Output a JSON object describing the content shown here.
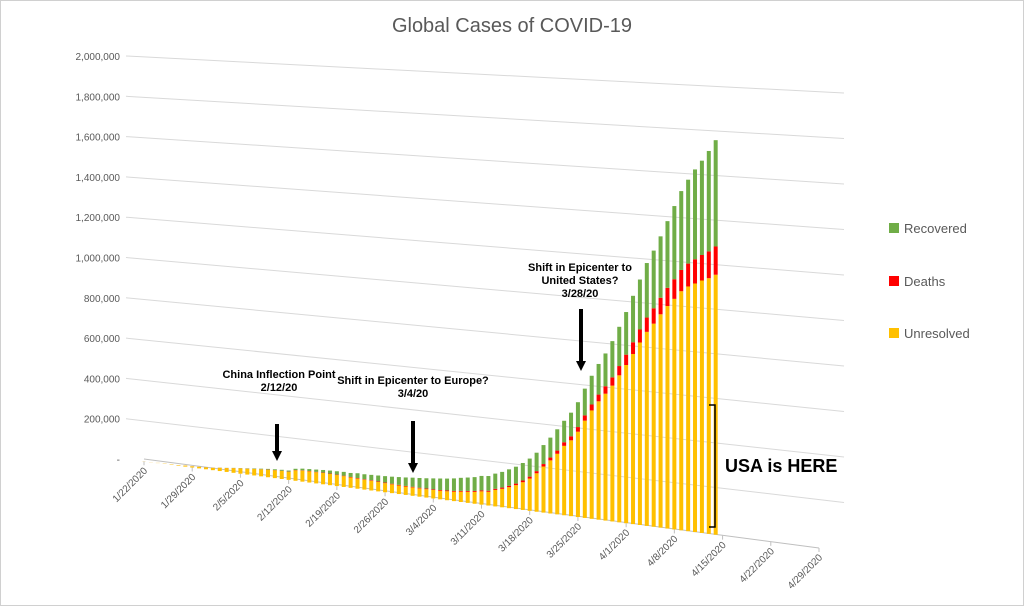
{
  "chart_data": {
    "type": "bar",
    "stacked": true,
    "title": "Global Cases of COVID-19",
    "xlabel": "",
    "ylabel": "",
    "ylim": [
      0,
      2000000
    ],
    "y_ticks": [
      "-",
      "200,000",
      "400,000",
      "600,000",
      "800,000",
      "1,000,000",
      "1,200,000",
      "1,400,000",
      "1,600,000",
      "1,800,000",
      "2,000,000"
    ],
    "x_ticks": [
      "1/22/2020",
      "1/29/2020",
      "2/5/2020",
      "2/12/2020",
      "2/19/2020",
      "2/26/2020",
      "3/4/2020",
      "3/11/2020",
      "3/18/2020",
      "3/25/2020",
      "4/1/2020",
      "4/8/2020",
      "4/15/2020",
      "4/22/2020",
      "4/29/2020"
    ],
    "start_date": "1/22/2020",
    "end_date": "4/29/2020",
    "series": [
      {
        "name": "Unresolved",
        "color": "#FFC000"
      },
      {
        "name": "Deaths",
        "color": "#FF0000"
      },
      {
        "name": "Recovered",
        "color": "#70AD47"
      }
    ],
    "days": [
      {
        "date": "1/22/2020",
        "unresolved": 500,
        "deaths": 17,
        "recovered": 28
      },
      {
        "date": "1/23/2020",
        "unresolved": 600,
        "deaths": 18,
        "recovered": 30
      },
      {
        "date": "1/24/2020",
        "unresolved": 880,
        "deaths": 26,
        "recovered": 36
      },
      {
        "date": "1/25/2020",
        "unresolved": 1300,
        "deaths": 42,
        "recovered": 39
      },
      {
        "date": "1/26/2020",
        "unresolved": 2000,
        "deaths": 56,
        "recovered": 52
      },
      {
        "date": "1/27/2020",
        "unresolved": 2700,
        "deaths": 82,
        "recovered": 61
      },
      {
        "date": "1/28/2020",
        "unresolved": 5300,
        "deaths": 131,
        "recovered": 107
      },
      {
        "date": "1/29/2020",
        "unresolved": 5900,
        "deaths": 133,
        "recovered": 126
      },
      {
        "date": "1/30/2020",
        "unresolved": 7800,
        "deaths": 171,
        "recovered": 143
      },
      {
        "date": "1/31/2020",
        "unresolved": 9400,
        "deaths": 213,
        "recovered": 222
      },
      {
        "date": "2/1/2020",
        "unresolved": 11300,
        "deaths": 259,
        "recovered": 284
      },
      {
        "date": "2/2/2020",
        "unresolved": 15900,
        "deaths": 362,
        "recovered": 472
      },
      {
        "date": "2/3/2020",
        "unresolved": 18700,
        "deaths": 426,
        "recovered": 623
      },
      {
        "date": "2/4/2020",
        "unresolved": 22600,
        "deaths": 492,
        "recovered": 852
      },
      {
        "date": "2/5/2020",
        "unresolved": 25600,
        "deaths": 564,
        "recovered": 1124
      },
      {
        "date": "2/6/2020",
        "unresolved": 28300,
        "deaths": 634,
        "recovered": 1487
      },
      {
        "date": "2/7/2020",
        "unresolved": 31500,
        "deaths": 719,
        "recovered": 2011
      },
      {
        "date": "2/8/2020",
        "unresolved": 33700,
        "deaths": 806,
        "recovered": 2616
      },
      {
        "date": "2/9/2020",
        "unresolved": 36200,
        "deaths": 906,
        "recovered": 3244
      },
      {
        "date": "2/10/2020",
        "unresolved": 37700,
        "deaths": 1013,
        "recovered": 3946
      },
      {
        "date": "2/11/2020",
        "unresolved": 38600,
        "deaths": 1113,
        "recovered": 4683
      },
      {
        "date": "2/12/2020",
        "unresolved": 38900,
        "deaths": 1118,
        "recovered": 5150
      },
      {
        "date": "2/13/2020",
        "unresolved": 50000,
        "deaths": 1371,
        "recovered": 6295
      },
      {
        "date": "2/14/2020",
        "unresolved": 52900,
        "deaths": 1523,
        "recovered": 8058
      },
      {
        "date": "2/15/2020",
        "unresolved": 53500,
        "deaths": 1666,
        "recovered": 9395
      },
      {
        "date": "2/16/2020",
        "unresolved": 53800,
        "deaths": 1770,
        "recovered": 10865
      },
      {
        "date": "2/17/2020",
        "unresolved": 54100,
        "deaths": 1868,
        "recovered": 12583
      },
      {
        "date": "2/18/2020",
        "unresolved": 53600,
        "deaths": 2007,
        "recovered": 14352
      },
      {
        "date": "2/19/2020",
        "unresolved": 52500,
        "deaths": 2122,
        "recovered": 16121
      },
      {
        "date": "2/20/2020",
        "unresolved": 51500,
        "deaths": 2247,
        "recovered": 18177
      },
      {
        "date": "2/21/2020",
        "unresolved": 49700,
        "deaths": 2251,
        "recovered": 18890
      },
      {
        "date": "2/22/2020",
        "unresolved": 48300,
        "deaths": 2458,
        "recovered": 22886
      },
      {
        "date": "2/23/2020",
        "unresolved": 47100,
        "deaths": 2469,
        "recovered": 23394
      },
      {
        "date": "2/24/2020",
        "unresolved": 46300,
        "deaths": 2629,
        "recovered": 25227
      },
      {
        "date": "2/25/2020",
        "unresolved": 44600,
        "deaths": 2708,
        "recovered": 27905
      },
      {
        "date": "2/26/2020",
        "unresolved": 43200,
        "deaths": 2770,
        "recovered": 30384
      },
      {
        "date": "2/27/2020",
        "unresolved": 41800,
        "deaths": 2814,
        "recovered": 33277
      },
      {
        "date": "2/28/2020",
        "unresolved": 40500,
        "deaths": 2872,
        "recovered": 36711
      },
      {
        "date": "2/29/2020",
        "unresolved": 39600,
        "deaths": 2941,
        "recovered": 39782
      },
      {
        "date": "3/1/2020",
        "unresolved": 39700,
        "deaths": 2996,
        "recovered": 42716
      },
      {
        "date": "3/2/2020",
        "unresolved": 39200,
        "deaths": 3085,
        "recovered": 45602
      },
      {
        "date": "3/3/2020",
        "unresolved": 39300,
        "deaths": 3160,
        "recovered": 48228
      },
      {
        "date": "3/4/2020",
        "unresolved": 39700,
        "deaths": 3254,
        "recovered": 51170
      },
      {
        "date": "3/5/2020",
        "unresolved": 40500,
        "deaths": 3348,
        "recovered": 53796
      },
      {
        "date": "3/6/2020",
        "unresolved": 42000,
        "deaths": 3460,
        "recovered": 55865
      },
      {
        "date": "3/7/2020",
        "unresolved": 44200,
        "deaths": 3558,
        "recovered": 58358
      },
      {
        "date": "3/8/2020",
        "unresolved": 48300,
        "deaths": 3802,
        "recovered": 60694
      },
      {
        "date": "3/9/2020",
        "unresolved": 51700,
        "deaths": 3988,
        "recovered": 62494
      },
      {
        "date": "3/10/2020",
        "unresolved": 55400,
        "deaths": 4262,
        "recovered": 64404
      },
      {
        "date": "3/11/2020",
        "unresolved": 61900,
        "deaths": 4615,
        "recovered": 67003
      },
      {
        "date": "3/12/2020",
        "unresolved": 64000,
        "deaths": 4720,
        "recovered": 68324
      },
      {
        "date": "3/13/2020",
        "unresolved": 76500,
        "deaths": 5404,
        "recovered": 70251
      },
      {
        "date": "3/14/2020",
        "unresolved": 85600,
        "deaths": 5819,
        "recovered": 72624
      },
      {
        "date": "3/15/2020",
        "unresolved": 97300,
        "deaths": 6440,
        "recovered": 76034
      },
      {
        "date": "3/16/2020",
        "unresolved": 110600,
        "deaths": 7126,
        "recovered": 78088
      },
      {
        "date": "3/17/2020",
        "unresolved": 128000,
        "deaths": 7905,
        "recovered": 80840
      },
      {
        "date": "3/18/2020",
        "unresolved": 149000,
        "deaths": 8733,
        "recovered": 83207
      },
      {
        "date": "3/19/2020",
        "unresolved": 177000,
        "deaths": 9867,
        "recovered": 84854
      },
      {
        "date": "3/20/2020",
        "unresolved": 212000,
        "deaths": 11299,
        "recovered": 87256
      },
      {
        "date": "3/21/2020",
        "unresolved": 244000,
        "deaths": 12973,
        "recovered": 91499
      },
      {
        "date": "3/22/2020",
        "unresolved": 278000,
        "deaths": 14623,
        "recovered": 97704
      },
      {
        "date": "3/23/2020",
        "unresolved": 318000,
        "deaths": 16497,
        "recovered": 98403
      },
      {
        "date": "3/24/2020",
        "unresolved": 347000,
        "deaths": 18615,
        "recovered": 107890
      },
      {
        "date": "3/25/2020",
        "unresolved": 390000,
        "deaths": 21181,
        "recovered": 113604
      },
      {
        "date": "3/26/2020",
        "unresolved": 444000,
        "deaths": 23970,
        "recovered": 122150
      },
      {
        "date": "3/27/2020",
        "unresolved": 494000,
        "deaths": 27198,
        "recovered": 130915
      },
      {
        "date": "3/28/2020",
        "unresolved": 539000,
        "deaths": 30652,
        "recovered": 139415
      },
      {
        "date": "3/29/2020",
        "unresolved": 577000,
        "deaths": 33925,
        "recovered": 149082
      },
      {
        "date": "3/30/2020",
        "unresolved": 617000,
        "deaths": 37582,
        "recovered": 164566
      },
      {
        "date": "3/31/2020",
        "unresolved": 667000,
        "deaths": 42107,
        "recovered": 178034
      },
      {
        "date": "4/1/2020",
        "unresolved": 717000,
        "deaths": 46809,
        "recovered": 193177
      },
      {
        "date": "4/2/2020",
        "unresolved": 770000,
        "deaths": 52983,
        "recovered": 210263
      },
      {
        "date": "4/3/2020",
        "unresolved": 825000,
        "deaths": 58787,
        "recovered": 225796
      },
      {
        "date": "4/4/2020",
        "unresolved": 876000,
        "deaths": 64606,
        "recovered": 246152
      },
      {
        "date": "4/5/2020",
        "unresolved": 916000,
        "deaths": 69374,
        "recovered": 260012
      },
      {
        "date": "4/6/2020",
        "unresolved": 961000,
        "deaths": 74565,
        "recovered": 276515
      },
      {
        "date": "4/7/2020",
        "unresolved": 1001000,
        "deaths": 81865,
        "recovered": 300054
      },
      {
        "date": "4/8/2020",
        "unresolved": 1036000,
        "deaths": 88338,
        "recovered": 328661
      },
      {
        "date": "4/9/2020",
        "unresolved": 1073000,
        "deaths": 95455,
        "recovered": 353975
      },
      {
        "date": "4/10/2020",
        "unresolved": 1097000,
        "deaths": 102525,
        "recovered": 376096
      },
      {
        "date": "4/11/2020",
        "unresolved": 1113000,
        "deaths": 108503,
        "recovered": 402110
      },
      {
        "date": "4/12/2020",
        "unresolved": 1129000,
        "deaths": 114091,
        "recovered": 421722
      },
      {
        "date": "4/13/2020",
        "unresolved": 1142000,
        "deaths": 119482,
        "recovered": 448655
      },
      {
        "date": "4/14/2020",
        "unresolved": 1160000,
        "deaths": 125984,
        "recovered": 474261
      }
    ],
    "annotations": [
      {
        "lines": [
          "China Inflection Point",
          "2/12/20"
        ],
        "date": "2/12/2020"
      },
      {
        "lines": [
          "Shift in Epicenter to Europe?",
          "3/4/20"
        ],
        "date": "3/4/2020"
      },
      {
        "lines": [
          "Shift in Epicenter to",
          "United States?",
          "3/28/20"
        ],
        "date": "3/28/2020"
      }
    ],
    "callout": "USA is HERE",
    "grid": true,
    "legend_position": "right"
  },
  "legend": [
    {
      "label": "Recovered",
      "color": "#70AD47"
    },
    {
      "label": "Deaths",
      "color": "#FF0000"
    },
    {
      "label": "Unresolved",
      "color": "#FFC000"
    }
  ]
}
